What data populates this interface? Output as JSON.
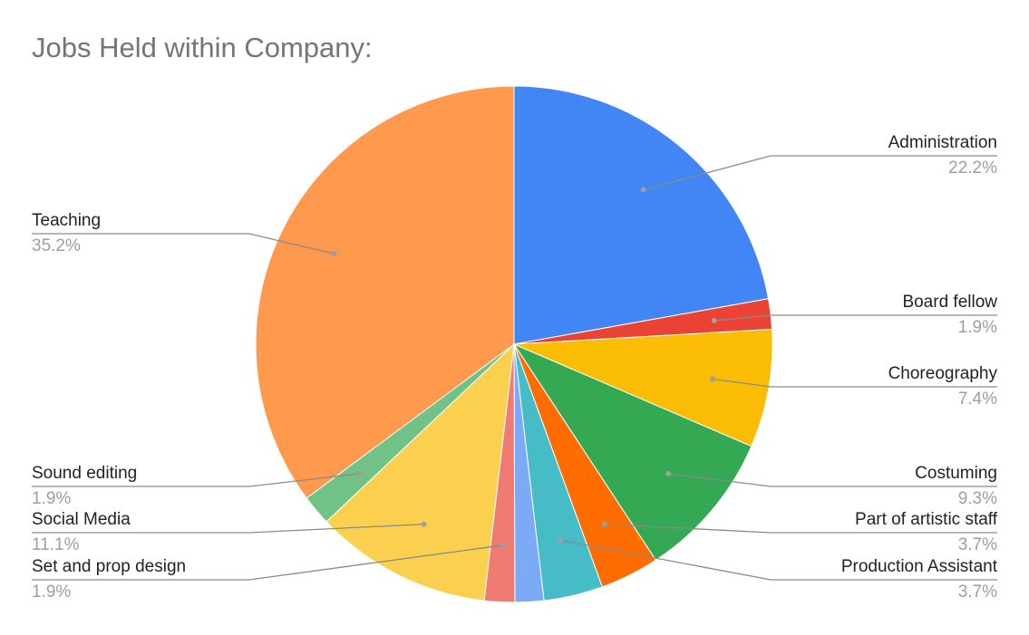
{
  "chart_data": {
    "type": "pie",
    "title": "Jobs Held within Company:",
    "categories": [
      "Administration",
      "Board fellow",
      "Choreography",
      "Costuming",
      "Part of artistic staff",
      "Production Assistant",
      null,
      "Set and prop design",
      "Social Media",
      "Sound editing",
      "Teaching"
    ],
    "values": [
      22.2,
      1.9,
      7.4,
      9.3,
      3.7,
      3.7,
      1.8,
      1.9,
      11.1,
      1.9,
      35.2
    ],
    "value_labels": [
      "22.2%",
      "1.9%",
      "7.4%",
      "9.3%",
      "3.7%",
      "3.7%",
      null,
      "1.9%",
      "11.1%",
      "1.9%",
      "35.2%"
    ],
    "colors": [
      "#4285f4",
      "#ea4335",
      "#fbbc04",
      "#34a853",
      "#ff6d01",
      "#46bdc6",
      "#7baaf7",
      "#f07b72",
      "#fcd04f",
      "#71c287",
      "#ff994d"
    ]
  }
}
